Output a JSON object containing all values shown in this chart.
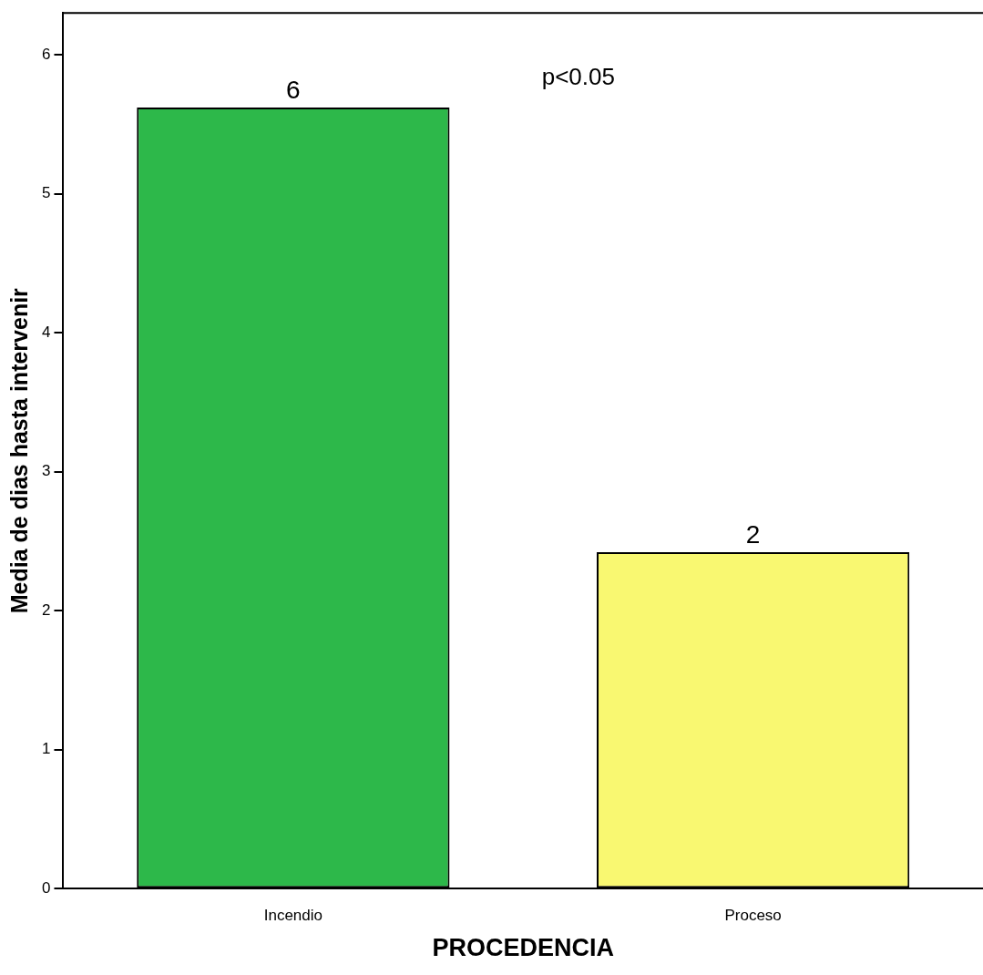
{
  "chart_data": {
    "type": "bar",
    "xlabel": "PROCEDENCIA",
    "ylabel": "Media de dias hasta intervenir",
    "categories": [
      "Incendio",
      "Proceso"
    ],
    "values": [
      5.62,
      2.42
    ],
    "colors": [
      "#2db84a",
      "#f9f871"
    ],
    "value_labels": [
      "6",
      "2"
    ],
    "ylim": [
      0,
      6.3
    ],
    "yticks": [
      0,
      1,
      2,
      3,
      4,
      5,
      6
    ],
    "grid": false,
    "annotations": [
      "p<0.05"
    ]
  }
}
